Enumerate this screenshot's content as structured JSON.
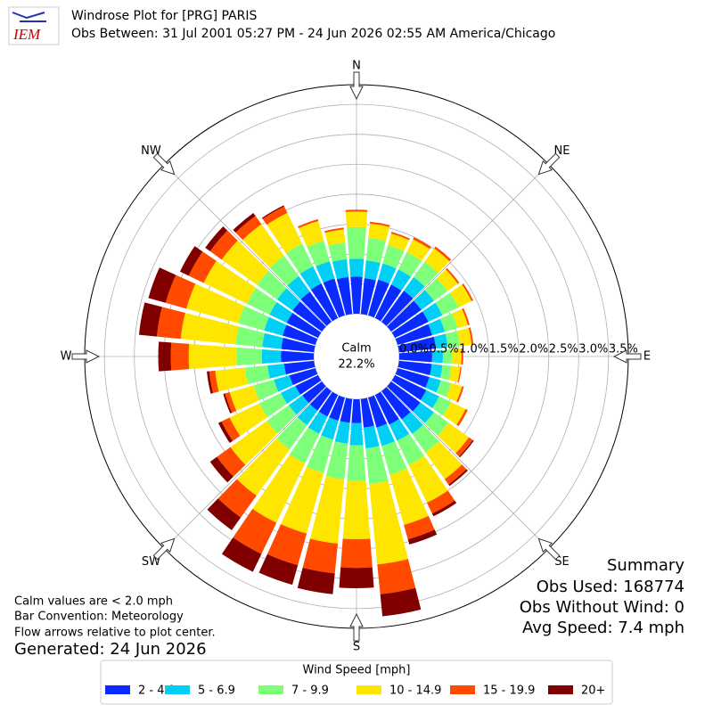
{
  "chart_data": {
    "type": "windrose",
    "logo_text": "IEM",
    "title": "Windrose Plot for [PRG] PARIS",
    "subtitle": "Obs Between: 31 Jul 2001 05:27 PM - 24 Jun 2026 02:55 AM America/Chicago",
    "calm": {
      "label": "Calm",
      "value": 22.2,
      "value_label": "22.2%"
    },
    "notes": [
      "Calm values are < 2.0 mph",
      "Bar Convention: Meteorology",
      "Flow arrows relative to plot center."
    ],
    "generated": "Generated: 24 Jun 2026",
    "summary": [
      "Summary",
      "Obs Used: 168774",
      "Obs Without Wind: 0",
      "Avg Speed: 7.4 mph"
    ],
    "legend_title": "Wind Speed [mph]",
    "x": [
      0,
      10,
      20,
      30,
      40,
      50,
      60,
      70,
      80,
      90,
      100,
      110,
      120,
      130,
      140,
      150,
      160,
      170,
      180,
      190,
      200,
      210,
      220,
      230,
      240,
      250,
      260,
      270,
      280,
      290,
      300,
      310,
      320,
      330,
      340,
      350
    ],
    "xlim": [
      0,
      360
    ],
    "xticks": [
      {
        "value": 0,
        "label": "N"
      },
      {
        "value": 45,
        "label": "NE"
      },
      {
        "value": 90,
        "label": "E"
      },
      {
        "value": 135,
        "label": "SE"
      },
      {
        "value": 180,
        "label": "S"
      },
      {
        "value": 225,
        "label": "SW"
      },
      {
        "value": 270,
        "label": "W"
      },
      {
        "value": 315,
        "label": "NW"
      }
    ],
    "ylim": [
      0,
      3.83
    ],
    "yticks": [
      {
        "value": 0,
        "label": "0.0%"
      },
      {
        "value": 0.5,
        "label": "0.5%"
      },
      {
        "value": 1,
        "label": "1.0%"
      },
      {
        "value": 1.5,
        "label": "1.5%"
      },
      {
        "value": 2,
        "label": "2.0%"
      },
      {
        "value": 2.5,
        "label": "2.5%"
      },
      {
        "value": 3,
        "label": "3.0%"
      },
      {
        "value": 3.5,
        "label": "3.5%"
      }
    ],
    "grid": true,
    "series": [
      {
        "name": "2 - 4.9",
        "color": "#0a2bff",
        "values": [
          0.62,
          0.6,
          0.62,
          0.62,
          0.64,
          0.62,
          0.62,
          0.6,
          0.62,
          0.55,
          0.55,
          0.55,
          0.58,
          0.6,
          0.58,
          0.55,
          0.52,
          0.48,
          0.4,
          0.4,
          0.4,
          0.4,
          0.4,
          0.4,
          0.42,
          0.45,
          0.5,
          0.55,
          0.55,
          0.57,
          0.58,
          0.6,
          0.62,
          0.64,
          0.64,
          0.62
        ]
      },
      {
        "name": "5 - 6.9",
        "color": "#00d0f5",
        "values": [
          0.3,
          0.3,
          0.28,
          0.28,
          0.28,
          0.26,
          0.26,
          0.22,
          0.2,
          0.18,
          0.18,
          0.2,
          0.24,
          0.28,
          0.3,
          0.3,
          0.32,
          0.35,
          0.37,
          0.35,
          0.33,
          0.32,
          0.3,
          0.28,
          0.27,
          0.27,
          0.28,
          0.32,
          0.32,
          0.32,
          0.32,
          0.32,
          0.32,
          0.32,
          0.3,
          0.3
        ]
      },
      {
        "name": "7 - 9.9",
        "color": "#7dff7a",
        "values": [
          0.53,
          0.38,
          0.32,
          0.32,
          0.32,
          0.28,
          0.3,
          0.22,
          0.2,
          0.15,
          0.15,
          0.18,
          0.22,
          0.3,
          0.38,
          0.45,
          0.5,
          0.6,
          0.6,
          0.6,
          0.58,
          0.55,
          0.5,
          0.45,
          0.4,
          0.35,
          0.38,
          0.42,
          0.45,
          0.45,
          0.42,
          0.42,
          0.42,
          0.42,
          0.36,
          0.28
        ]
      },
      {
        "name": "10 - 14.9",
        "color": "#ffe600",
        "values": [
          0.26,
          0.24,
          0.2,
          0.24,
          0.27,
          0.21,
          0.24,
          0.18,
          0.2,
          0.16,
          0.15,
          0.19,
          0.27,
          0.42,
          0.55,
          0.7,
          0.87,
          1.35,
          0.97,
          1.08,
          1.05,
          1.1,
          0.95,
          0.75,
          0.55,
          0.42,
          0.5,
          0.8,
          0.92,
          0.9,
          0.8,
          0.72,
          0.65,
          0.57,
          0.34,
          0.22
        ]
      },
      {
        "name": "15 - 19.9",
        "color": "#ff4a00",
        "values": [
          0.03,
          0.03,
          0.03,
          0.04,
          0.04,
          0.03,
          0.03,
          0.03,
          0.03,
          0.03,
          0.02,
          0.03,
          0.04,
          0.08,
          0.11,
          0.2,
          0.25,
          0.5,
          0.48,
          0.5,
          0.55,
          0.58,
          0.45,
          0.28,
          0.15,
          0.08,
          0.1,
          0.3,
          0.4,
          0.36,
          0.28,
          0.24,
          0.17,
          0.12,
          0.03,
          0.03
        ]
      },
      {
        "name": "20+",
        "color": "#800000",
        "values": [
          0,
          0,
          0,
          0,
          0,
          0,
          0,
          0,
          0,
          0,
          0,
          0,
          0,
          0.02,
          0.03,
          0.05,
          0.09,
          0.37,
          0.34,
          0.35,
          0.34,
          0.33,
          0.26,
          0.14,
          0.06,
          0.03,
          0.04,
          0.21,
          0.3,
          0.3,
          0.16,
          0.1,
          0.06,
          0.02,
          0,
          0
        ]
      }
    ]
  }
}
